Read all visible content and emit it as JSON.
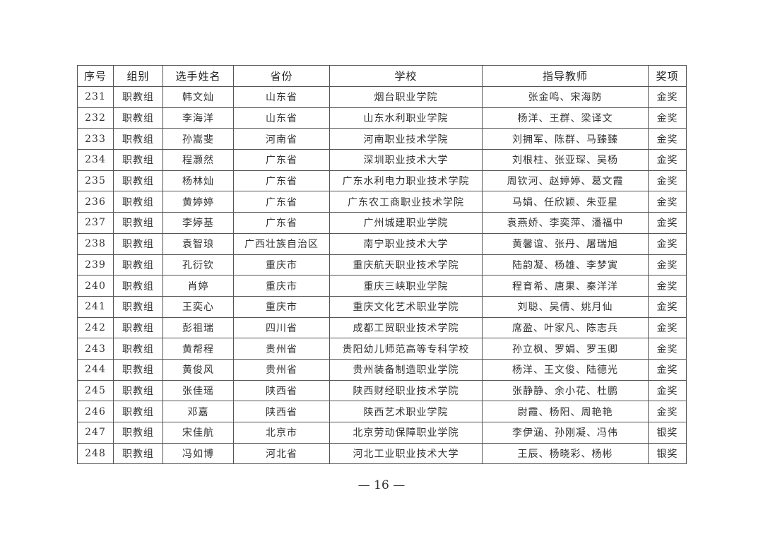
{
  "table": {
    "headers": [
      "序号",
      "组别",
      "选手姓名",
      "省份",
      "学校",
      "指导教师",
      "奖项"
    ],
    "rows": [
      [
        "231",
        "职教组",
        "韩文灿",
        "山东省",
        "烟台职业学院",
        "张金鸣、宋海防",
        "金奖"
      ],
      [
        "232",
        "职教组",
        "李海洋",
        "山东省",
        "山东水利职业学院",
        "杨洋、王群、梁译文",
        "金奖"
      ],
      [
        "233",
        "职教组",
        "孙嵩斐",
        "河南省",
        "河南职业技术学院",
        "刘拥军、陈群、马臻臻",
        "金奖"
      ],
      [
        "234",
        "职教组",
        "程灏然",
        "广东省",
        "深圳职业技术大学",
        "刘根柱、张亚琛、吴杨",
        "金奖"
      ],
      [
        "235",
        "职教组",
        "杨林灿",
        "广东省",
        "广东水利电力职业技术学院",
        "周钦河、赵婷婷、葛文霞",
        "金奖"
      ],
      [
        "236",
        "职教组",
        "黄婷婷",
        "广东省",
        "广东农工商职业技术学院",
        "马娟、任欣颖、朱亚星",
        "金奖"
      ],
      [
        "237",
        "职教组",
        "李婷基",
        "广东省",
        "广州城建职业学院",
        "袁燕娇、李奕萍、潘福中",
        "金奖"
      ],
      [
        "238",
        "职教组",
        "袁智琅",
        "广西壮族自治区",
        "南宁职业技术大学",
        "黄馨谊、张丹、屠瑞旭",
        "金奖"
      ],
      [
        "239",
        "职教组",
        "孔衍钦",
        "重庆市",
        "重庆航天职业技术学院",
        "陆韵凝、杨雄、李梦寅",
        "金奖"
      ],
      [
        "240",
        "职教组",
        "肖婷",
        "重庆市",
        "重庆三峡职业学院",
        "程育希、唐果、秦洋洋",
        "金奖"
      ],
      [
        "241",
        "职教组",
        "王奕心",
        "重庆市",
        "重庆文化艺术职业学院",
        "刘聪、吴倩、姚月仙",
        "金奖"
      ],
      [
        "242",
        "职教组",
        "彭祖瑞",
        "四川省",
        "成都工贸职业技术学院",
        "席盈、叶家凡、陈志兵",
        "金奖"
      ],
      [
        "243",
        "职教组",
        "黄帮程",
        "贵州省",
        "贵阳幼儿师范高等专科学校",
        "孙立枫、罗娟、罗玉卿",
        "金奖"
      ],
      [
        "244",
        "职教组",
        "黄俊风",
        "贵州省",
        "贵州装备制造职业学院",
        "杨洋、王文俊、陆德光",
        "金奖"
      ],
      [
        "245",
        "职教组",
        "张佳瑶",
        "陕西省",
        "陕西财经职业技术学院",
        "张静静、余小花、杜鹏",
        "金奖"
      ],
      [
        "246",
        "职教组",
        "邓嘉",
        "陕西省",
        "陕西艺术职业学院",
        "尉霞、杨阳、周艳艳",
        "金奖"
      ],
      [
        "247",
        "职教组",
        "宋佳航",
        "北京市",
        "北京劳动保障职业学院",
        "李伊涵、孙刚凝、冯伟",
        "银奖"
      ],
      [
        "248",
        "职教组",
        "冯如博",
        "河北省",
        "河北工业职业技术大学",
        "王辰、杨晓彩、杨彬",
        "银奖"
      ]
    ]
  },
  "page_number": "— 16 —"
}
